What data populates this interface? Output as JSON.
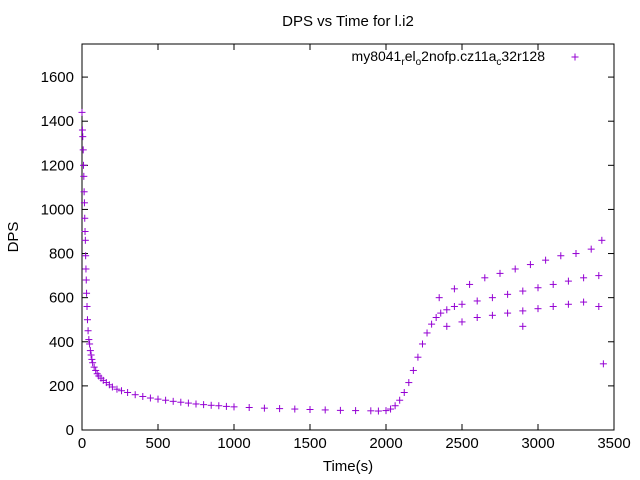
{
  "chart_data": {
    "type": "scatter",
    "title": "DPS vs Time for l.i2",
    "xlabel": "Time(s)",
    "ylabel": "DPS",
    "xlim": [
      0,
      3500
    ],
    "ylim": [
      0,
      1750
    ],
    "xticks": [
      0,
      500,
      1000,
      1500,
      2000,
      2500,
      3000,
      3500
    ],
    "yticks": [
      0,
      200,
      400,
      600,
      800,
      1000,
      1200,
      1400,
      1600
    ],
    "grid": false,
    "legend_position": "top-right",
    "marker": "plus",
    "series": [
      {
        "name_parts": {
          "base": "my8041",
          "sub1": "r",
          "mid1": "el",
          "sub2": "o",
          "mid2": "2nofp.cz11a",
          "sub3": "c",
          "tail": "32r128"
        },
        "color": "#9400d3",
        "points": [
          [
            0,
            1440
          ],
          [
            3,
            1360
          ],
          [
            5,
            1330
          ],
          [
            8,
            1270
          ],
          [
            10,
            1200
          ],
          [
            12,
            1150
          ],
          [
            14,
            1080
          ],
          [
            16,
            1030
          ],
          [
            18,
            960
          ],
          [
            20,
            900
          ],
          [
            22,
            860
          ],
          [
            24,
            790
          ],
          [
            26,
            730
          ],
          [
            28,
            680
          ],
          [
            30,
            620
          ],
          [
            33,
            560
          ],
          [
            36,
            500
          ],
          [
            40,
            450
          ],
          [
            45,
            410
          ],
          [
            50,
            390
          ],
          [
            55,
            360
          ],
          [
            60,
            340
          ],
          [
            65,
            320
          ],
          [
            70,
            305
          ],
          [
            80,
            285
          ],
          [
            90,
            270
          ],
          [
            100,
            255
          ],
          [
            110,
            245
          ],
          [
            125,
            235
          ],
          [
            140,
            225
          ],
          [
            160,
            215
          ],
          [
            180,
            205
          ],
          [
            200,
            195
          ],
          [
            230,
            185
          ],
          [
            260,
            178
          ],
          [
            300,
            170
          ],
          [
            350,
            160
          ],
          [
            400,
            152
          ],
          [
            450,
            145
          ],
          [
            500,
            140
          ],
          [
            550,
            135
          ],
          [
            600,
            130
          ],
          [
            650,
            126
          ],
          [
            700,
            122
          ],
          [
            750,
            118
          ],
          [
            800,
            115
          ],
          [
            850,
            112
          ],
          [
            900,
            110
          ],
          [
            950,
            107
          ],
          [
            1000,
            105
          ],
          [
            1100,
            102
          ],
          [
            1200,
            99
          ],
          [
            1300,
            97
          ],
          [
            1400,
            95
          ],
          [
            1500,
            93
          ],
          [
            1600,
            91
          ],
          [
            1700,
            89
          ],
          [
            1800,
            88
          ],
          [
            1900,
            87
          ],
          [
            1950,
            86
          ],
          [
            2000,
            88
          ],
          [
            2030,
            95
          ],
          [
            2060,
            110
          ],
          [
            2090,
            135
          ],
          [
            2120,
            170
          ],
          [
            2150,
            215
          ],
          [
            2180,
            270
          ],
          [
            2210,
            330
          ],
          [
            2240,
            390
          ],
          [
            2270,
            440
          ],
          [
            2300,
            480
          ],
          [
            2330,
            510
          ],
          [
            2360,
            530
          ],
          [
            2400,
            545
          ],
          [
            2450,
            560
          ],
          [
            2500,
            570
          ],
          [
            2600,
            585
          ],
          [
            2700,
            600
          ],
          [
            2800,
            615
          ],
          [
            2900,
            630
          ],
          [
            3000,
            645
          ],
          [
            3100,
            660
          ],
          [
            3200,
            675
          ],
          [
            3300,
            690
          ],
          [
            3400,
            700
          ],
          [
            2350,
            600
          ],
          [
            2450,
            640
          ],
          [
            2550,
            660
          ],
          [
            2650,
            690
          ],
          [
            2750,
            710
          ],
          [
            2850,
            730
          ],
          [
            2950,
            750
          ],
          [
            3050,
            770
          ],
          [
            3150,
            790
          ],
          [
            3250,
            800
          ],
          [
            3350,
            820
          ],
          [
            3420,
            860
          ],
          [
            2400,
            470
          ],
          [
            2500,
            490
          ],
          [
            2600,
            510
          ],
          [
            2700,
            520
          ],
          [
            2800,
            530
          ],
          [
            2900,
            540
          ],
          [
            3000,
            550
          ],
          [
            3100,
            560
          ],
          [
            3200,
            570
          ],
          [
            3300,
            580
          ],
          [
            3400,
            560
          ],
          [
            2900,
            470
          ],
          [
            3430,
            300
          ]
        ]
      }
    ]
  }
}
